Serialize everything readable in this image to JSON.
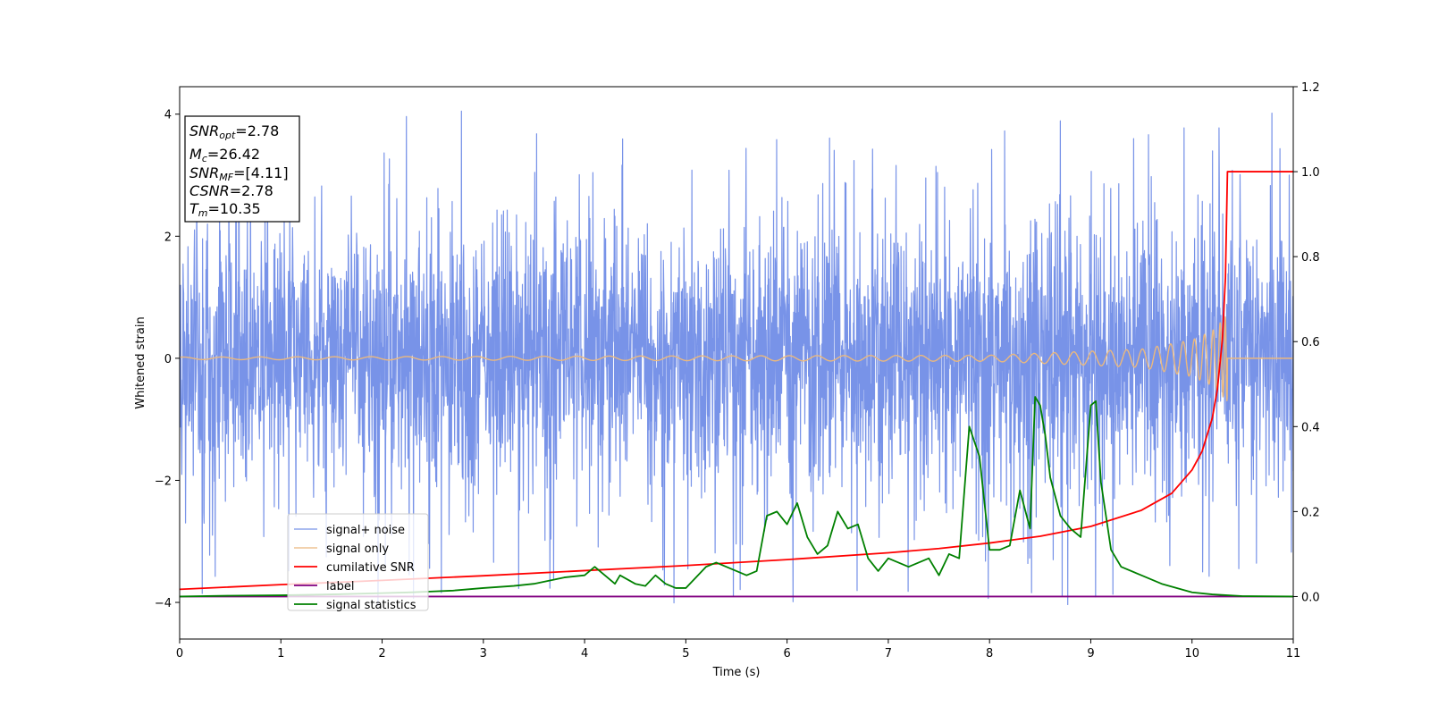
{
  "chart_data": {
    "type": "line",
    "title": "",
    "xlabel": "Time (s)",
    "ylabel": "Whitened strain",
    "y2label": "",
    "xlim": [
      0,
      11
    ],
    "ylim": [
      -4.6,
      4.45
    ],
    "y2lim": [
      -0.1,
      1.2
    ],
    "x_ticks": [
      0,
      1,
      2,
      3,
      4,
      5,
      6,
      7,
      8,
      9,
      10,
      11
    ],
    "y_ticks": [
      -4,
      -2,
      0,
      2,
      4
    ],
    "y2_ticks": [
      0.0,
      0.2,
      0.4,
      0.6,
      0.8,
      1.0,
      1.2
    ],
    "x_tick_labels": [
      "0",
      "1",
      "2",
      "3",
      "4",
      "5",
      "6",
      "7",
      "8",
      "9",
      "10",
      "11"
    ],
    "y_tick_labels": [
      "−4",
      "−2",
      "0",
      "2",
      "4"
    ],
    "y2_tick_labels": [
      "0.0",
      "0.2",
      "0.4",
      "0.6",
      "0.8",
      "1.0",
      "1.2"
    ],
    "grid": false,
    "legend_position": "lower-left",
    "info_box": {
      "snr_opt": {
        "sym": "SNR",
        "sub": "opt",
        "value": "=2.78"
      },
      "mc": {
        "sym": "M",
        "sub": "c",
        "value": "=26.42"
      },
      "snr_mf": {
        "sym": "SNR",
        "sub": "MF",
        "value": "=[4.11]"
      },
      "csnr": {
        "sym": "CSNR",
        "sub": "",
        "value": "=2.78"
      },
      "tm": {
        "sym": "T",
        "sub": "m",
        "value": "=10.35"
      }
    },
    "series": [
      {
        "name": "signal+ noise",
        "axis": "left",
        "color": "#7893e8",
        "style": "dense noise, roughly ±2.4 with spikes up to about ±4",
        "amplitude_typical": 2.4,
        "amplitude_peak": 4.05
      },
      {
        "name": "signal only",
        "axis": "left",
        "color": "#eab87e",
        "style": "chirp, amplitude growing toward merger",
        "amplitude_at": [
          [
            0,
            0.02
          ],
          [
            8,
            0.05
          ],
          [
            9.5,
            0.15
          ],
          [
            10.0,
            0.3
          ],
          [
            10.2,
            0.45
          ],
          [
            10.3,
            0.62
          ],
          [
            10.35,
            0.72
          ]
        ],
        "merger_time": 10.35
      },
      {
        "name": "cumilative SNR",
        "axis": "right",
        "color": "#ff0000",
        "x": [
          0,
          1,
          2,
          3,
          4,
          5,
          6,
          7,
          7.5,
          8,
          8.5,
          9,
          9.5,
          9.8,
          10,
          10.1,
          10.2,
          10.25,
          10.3,
          10.33,
          10.35,
          11
        ],
        "y": [
          0.017,
          0.028,
          0.038,
          0.049,
          0.061,
          0.073,
          0.087,
          0.103,
          0.113,
          0.126,
          0.142,
          0.165,
          0.203,
          0.243,
          0.298,
          0.342,
          0.42,
          0.487,
          0.605,
          0.75,
          1.0,
          1.0
        ]
      },
      {
        "name": "label",
        "axis": "right",
        "color": "#800080",
        "x": [
          0,
          11
        ],
        "y": [
          0,
          0
        ]
      },
      {
        "name": "signal statistics",
        "axis": "right",
        "color": "#008000",
        "x": [
          0,
          0.5,
          1,
          1.5,
          2,
          2.3,
          2.5,
          2.7,
          3,
          3.3,
          3.5,
          3.8,
          4.0,
          4.1,
          4.15,
          4.3,
          4.35,
          4.5,
          4.6,
          4.7,
          4.8,
          4.9,
          5.0,
          5.2,
          5.3,
          5.4,
          5.5,
          5.6,
          5.7,
          5.8,
          5.9,
          6.0,
          6.1,
          6.2,
          6.3,
          6.4,
          6.5,
          6.6,
          6.7,
          6.8,
          6.9,
          7.0,
          7.1,
          7.2,
          7.3,
          7.4,
          7.5,
          7.6,
          7.7,
          7.8,
          7.9,
          8.0,
          8.1,
          8.2,
          8.3,
          8.4,
          8.45,
          8.5,
          8.55,
          8.6,
          8.7,
          8.8,
          8.9,
          9.0,
          9.05,
          9.1,
          9.2,
          9.3,
          9.5,
          9.7,
          10.0,
          10.2,
          10.5,
          11
        ],
        "y": [
          0,
          0.002,
          0.003,
          0.005,
          0.008,
          0.01,
          0.012,
          0.014,
          0.02,
          0.025,
          0.03,
          0.045,
          0.05,
          0.07,
          0.06,
          0.03,
          0.05,
          0.03,
          0.025,
          0.05,
          0.03,
          0.02,
          0.02,
          0.07,
          0.08,
          0.07,
          0.06,
          0.05,
          0.06,
          0.19,
          0.2,
          0.17,
          0.22,
          0.14,
          0.1,
          0.12,
          0.2,
          0.16,
          0.17,
          0.09,
          0.06,
          0.09,
          0.08,
          0.07,
          0.08,
          0.09,
          0.05,
          0.1,
          0.09,
          0.4,
          0.33,
          0.11,
          0.11,
          0.12,
          0.25,
          0.16,
          0.47,
          0.45,
          0.38,
          0.28,
          0.19,
          0.16,
          0.14,
          0.45,
          0.46,
          0.27,
          0.11,
          0.07,
          0.05,
          0.03,
          0.01,
          0.005,
          0.001,
          0
        ]
      }
    ]
  }
}
